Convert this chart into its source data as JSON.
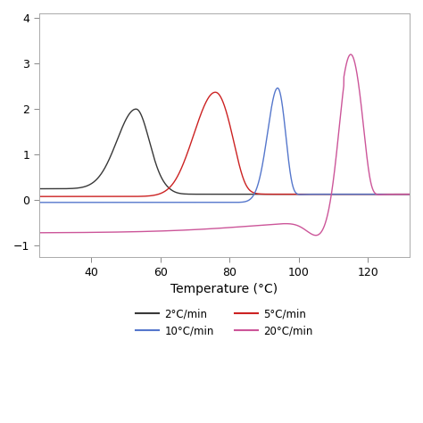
{
  "xlabel": "Temperature (°C)",
  "xlim": [
    25,
    132
  ],
  "ylim": [
    -1.25,
    4.1
  ],
  "yticks": [
    -1,
    0,
    1,
    2,
    3,
    4
  ],
  "xticks": [
    40,
    60,
    80,
    100,
    120
  ],
  "colors": {
    "black": "#383838",
    "red": "#cc2222",
    "blue": "#5577cc",
    "pink": "#cc5599"
  },
  "labels": [
    "2°C/min",
    "5°C/min",
    "10°C/min",
    "20°C/min"
  ],
  "background_color": "#ffffff"
}
